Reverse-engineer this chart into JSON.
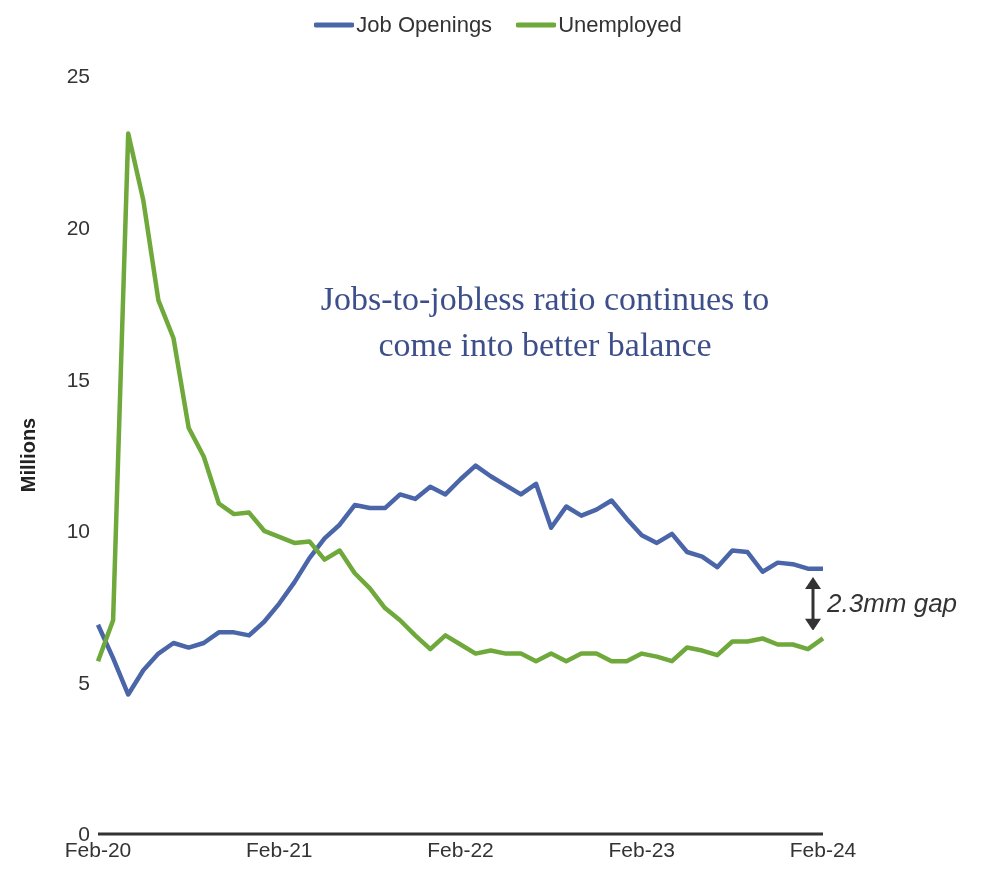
{
  "chart_data": {
    "type": "line",
    "ylabel": "Millions",
    "categories": [
      "Feb-20",
      null,
      null,
      null,
      null,
      null,
      null,
      null,
      null,
      null,
      null,
      null,
      "Feb-21",
      null,
      null,
      null,
      null,
      null,
      null,
      null,
      null,
      null,
      null,
      null,
      "Feb-22",
      null,
      null,
      null,
      null,
      null,
      null,
      null,
      null,
      null,
      null,
      null,
      "Feb-23",
      null,
      null,
      null,
      null,
      null,
      null,
      null,
      null,
      null,
      null,
      null,
      "Feb-24"
    ],
    "series": [
      {
        "name": "Job Openings",
        "color": "#4a66a8",
        "values": [
          6.9,
          5.8,
          4.6,
          5.4,
          5.95,
          6.3,
          6.15,
          6.3,
          6.65,
          6.65,
          6.55,
          7.0,
          7.6,
          8.3,
          9.1,
          9.75,
          10.2,
          10.85,
          10.75,
          10.75,
          11.2,
          11.05,
          11.45,
          11.2,
          11.7,
          12.15,
          11.8,
          11.5,
          11.2,
          11.55,
          10.1,
          10.8,
          10.5,
          10.7,
          11.0,
          10.4,
          9.85,
          9.6,
          9.9,
          9.3,
          9.15,
          8.8,
          9.35,
          9.3,
          8.65,
          8.95,
          8.9,
          8.75,
          8.75
        ]
      },
      {
        "name": "Unemployed",
        "color": "#6fa83b",
        "values": [
          5.7,
          7.05,
          23.1,
          20.9,
          17.6,
          16.35,
          13.4,
          12.45,
          10.9,
          10.55,
          10.6,
          10.0,
          9.8,
          9.6,
          9.65,
          9.05,
          9.35,
          8.6,
          8.1,
          7.45,
          7.05,
          6.55,
          6.1,
          6.55,
          6.25,
          5.95,
          6.05,
          5.95,
          5.95,
          5.7,
          5.95,
          5.7,
          5.95,
          5.95,
          5.7,
          5.7,
          5.95,
          5.85,
          5.7,
          6.15,
          6.05,
          5.9,
          6.35,
          6.35,
          6.45,
          6.25,
          6.25,
          6.1,
          6.45
        ]
      }
    ],
    "ylim": [
      0,
      25
    ],
    "yticks": [
      0,
      5,
      10,
      15,
      20,
      25
    ],
    "grid": false,
    "legend": "top",
    "marker": "none",
    "line_style": "solid",
    "annotations": [
      "Jobs-to-jobless ratio continues to come into better balance",
      "2.3mm gap"
    ]
  }
}
